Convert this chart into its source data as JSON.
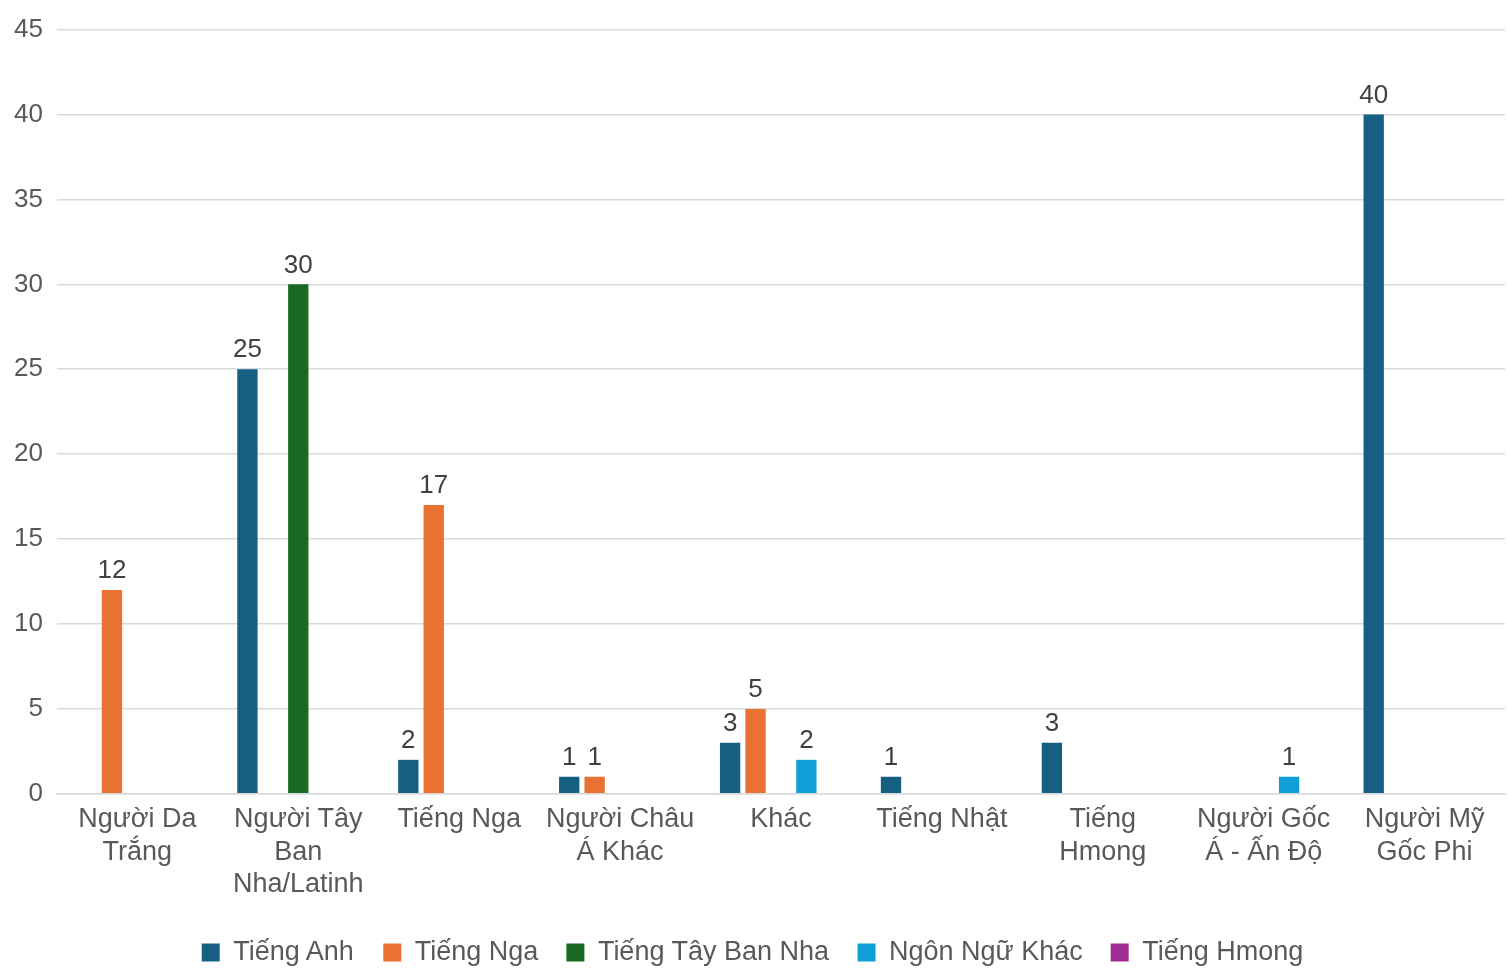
{
  "chart_data": {
    "type": "bar",
    "categories": [
      "Người Da Trắng",
      "Người Tây Ban Nha/Latinh",
      "Tiếng Nga",
      "Người Châu Á Khác",
      "Khác",
      "Tiếng Nhật",
      "Tiếng Hmong",
      "Người Gốc Á - Ấn Độ",
      "Người Mỹ Gốc Phi"
    ],
    "series": [
      {
        "name": "Tiếng Anh",
        "color": "#156082",
        "values": [
          null,
          25,
          2,
          1,
          3,
          1,
          3,
          null,
          40
        ]
      },
      {
        "name": "Tiếng Nga",
        "color": "#e97132",
        "values": [
          12,
          null,
          17,
          1,
          5,
          null,
          null,
          null,
          null
        ]
      },
      {
        "name": "Tiếng Tây Ban Nha",
        "color": "#196b24",
        "values": [
          null,
          30,
          null,
          null,
          null,
          null,
          null,
          null,
          null
        ]
      },
      {
        "name": "Ngôn Ngữ Khác",
        "color": "#0f9ed5",
        "values": [
          null,
          null,
          null,
          null,
          2,
          null,
          null,
          1,
          null
        ]
      },
      {
        "name": "Tiếng Hmong",
        "color": "#a02b93",
        "values": [
          null,
          null,
          null,
          null,
          null,
          null,
          null,
          null,
          null
        ]
      }
    ],
    "ylim": [
      0,
      45
    ],
    "yticks": [
      0,
      5,
      10,
      15,
      20,
      25,
      30,
      35,
      40,
      45
    ],
    "grid": "y",
    "legend": "bottom",
    "data_labels": true
  }
}
